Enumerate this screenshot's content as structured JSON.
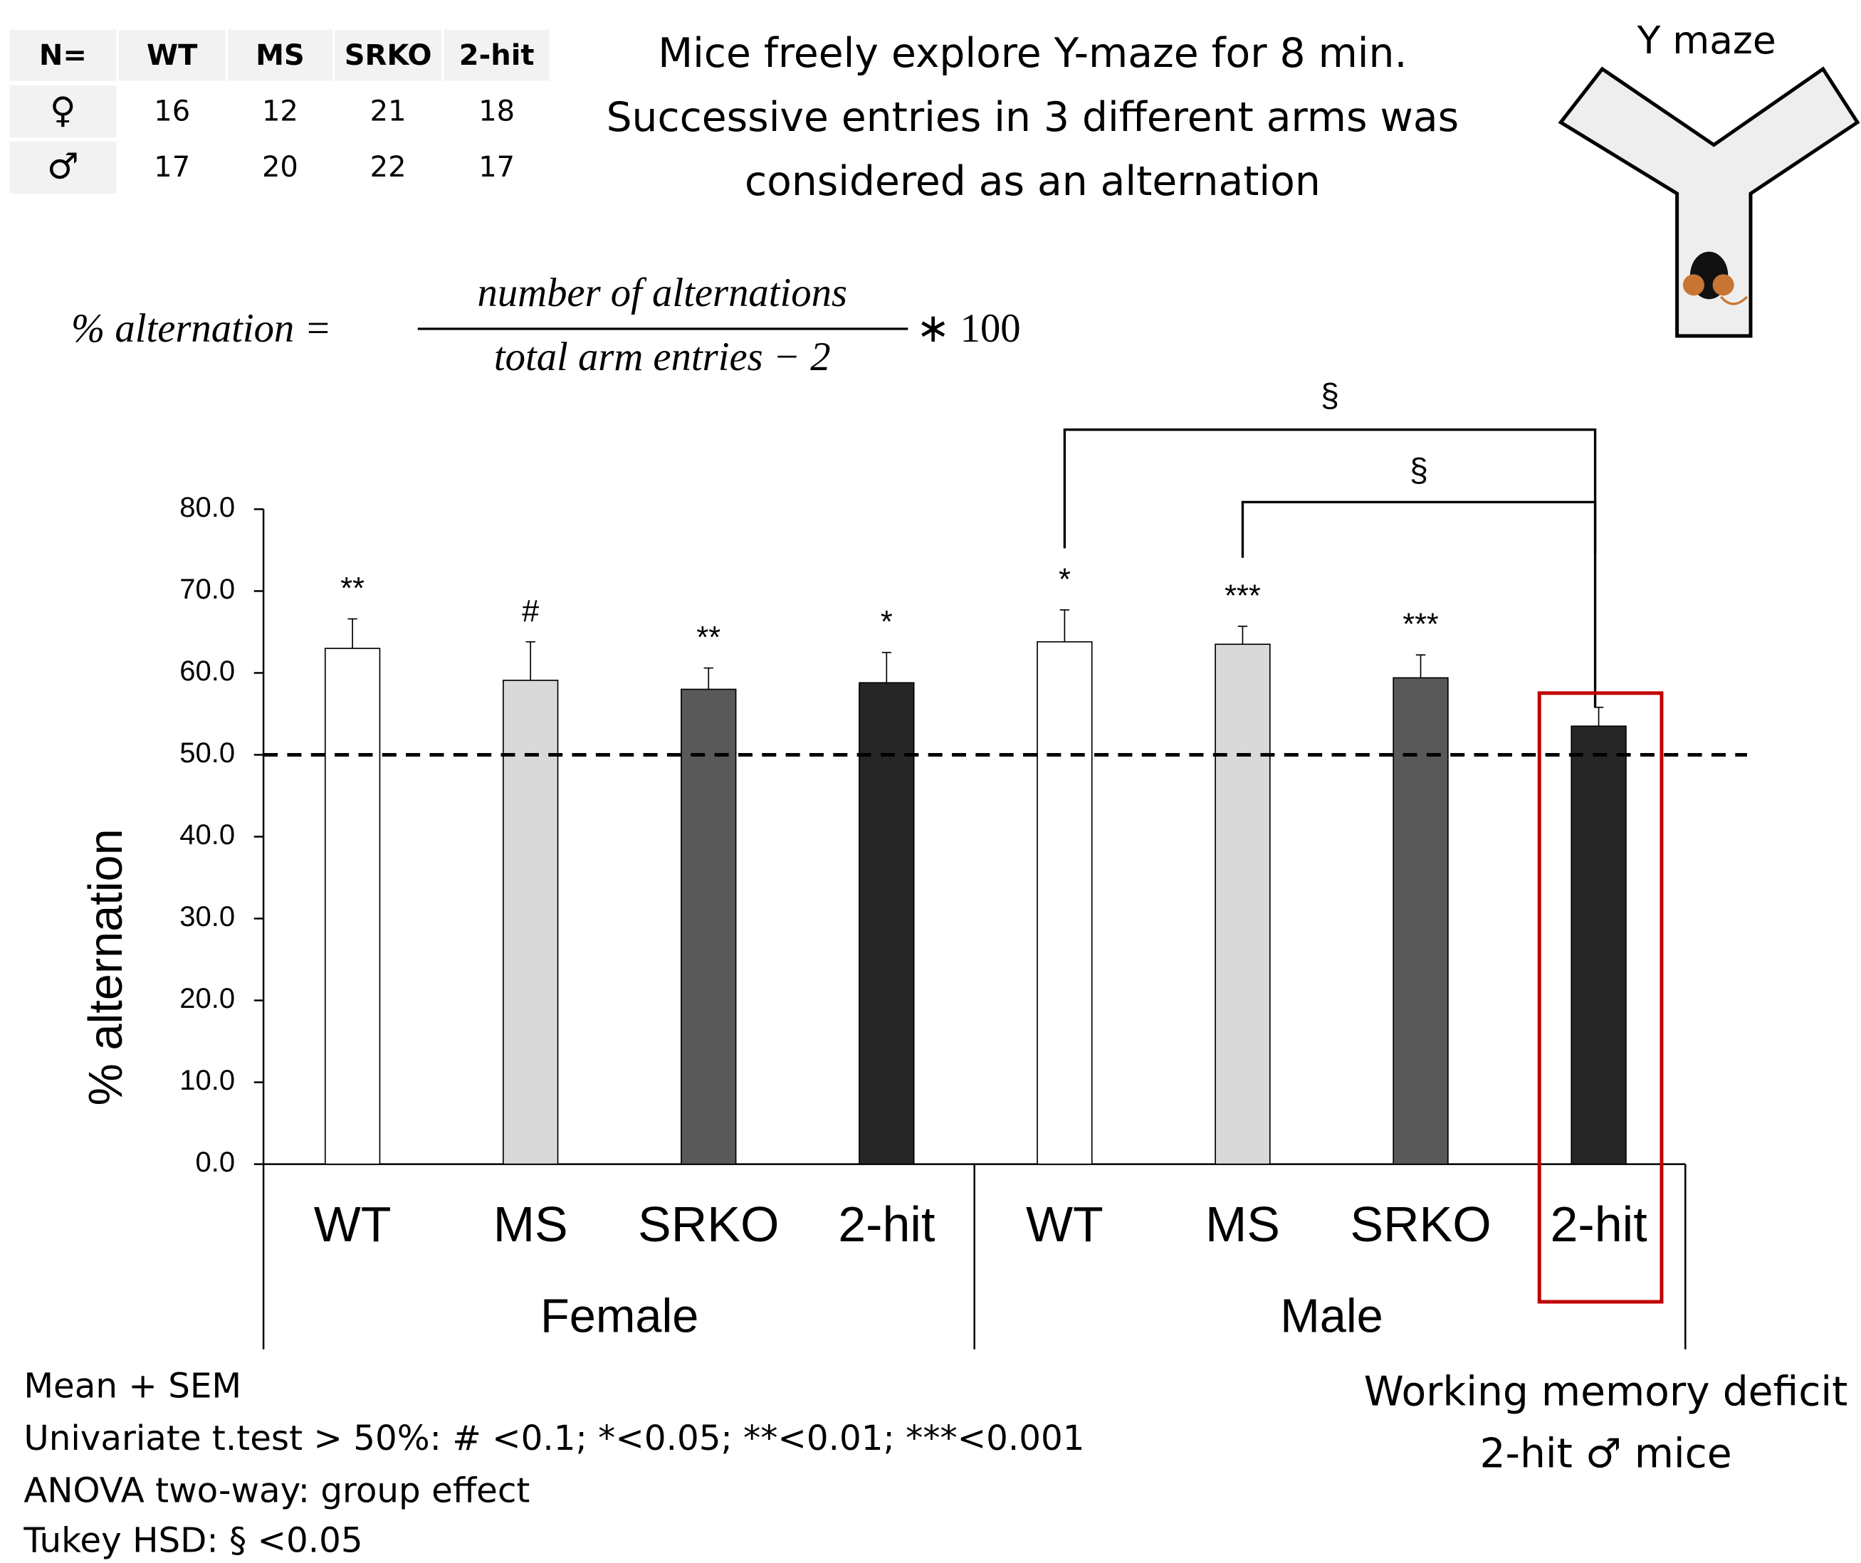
{
  "table": {
    "header": [
      "N=",
      "WT",
      "MS",
      "SRKO",
      "2-hit"
    ],
    "rows": [
      [
        "♀",
        "16",
        "12",
        "21",
        "18"
      ],
      [
        "♂",
        "17",
        "20",
        "22",
        "17"
      ]
    ]
  },
  "description": [
    "Mice freely explore Y-maze for 8 min.",
    "Successive entries in 3 different arms was",
    "considered as an alternation"
  ],
  "maze_label": "Y maze",
  "formula": {
    "lhs": "% alternation =",
    "numerator": "number of alternations",
    "denominator": "total arm entries − 2",
    "factor": "∗ 100"
  },
  "chart_data": {
    "type": "bar",
    "ylabel": "% alternation",
    "categories": [
      "WT",
      "MS",
      "SRKO",
      "2-hit",
      "WT",
      "MS",
      "SRKO",
      "2-hit"
    ],
    "groups": [
      "Female",
      "Male"
    ],
    "values": [
      63.0,
      59.1,
      58.0,
      58.8,
      63.8,
      63.5,
      59.4,
      53.5
    ],
    "errors": [
      3.6,
      4.7,
      2.6,
      3.7,
      3.9,
      2.2,
      2.8,
      2.3
    ],
    "colors": [
      "#ffffff",
      "#d9d9d9",
      "#595959",
      "#262626",
      "#ffffff",
      "#d9d9d9",
      "#595959",
      "#262626"
    ],
    "significance": [
      "**",
      "#",
      "**",
      "*",
      "*",
      "***",
      "***",
      null
    ],
    "brackets": [
      {
        "label": "§"
      },
      {
        "label": "§"
      }
    ],
    "reference_line": 50,
    "ylim": [
      0,
      80
    ],
    "yticks": [
      {
        "value": 0,
        "label": "0.0"
      },
      {
        "value": 10,
        "label": "10.0"
      },
      {
        "value": 20,
        "label": "20.0"
      },
      {
        "value": 30,
        "label": "30.0"
      },
      {
        "value": 40,
        "label": "40.0"
      },
      {
        "value": 50,
        "label": "50.0"
      },
      {
        "value": 60,
        "label": "60.0"
      },
      {
        "value": 70,
        "label": "70.0"
      },
      {
        "value": 80,
        "label": "80.0"
      }
    ],
    "highlight": [
      "Working memory deficit",
      "2-hit ♂ mice"
    ],
    "highlight_color": "#c00000"
  },
  "footnotes": [
    "Mean + SEM",
    "Univariate t.test > 50%: # <0.1; *<0.05; **<0.01; ***<0.001",
    "ANOVA two-way: group effect",
    "Tukey HSD: § <0.05"
  ]
}
